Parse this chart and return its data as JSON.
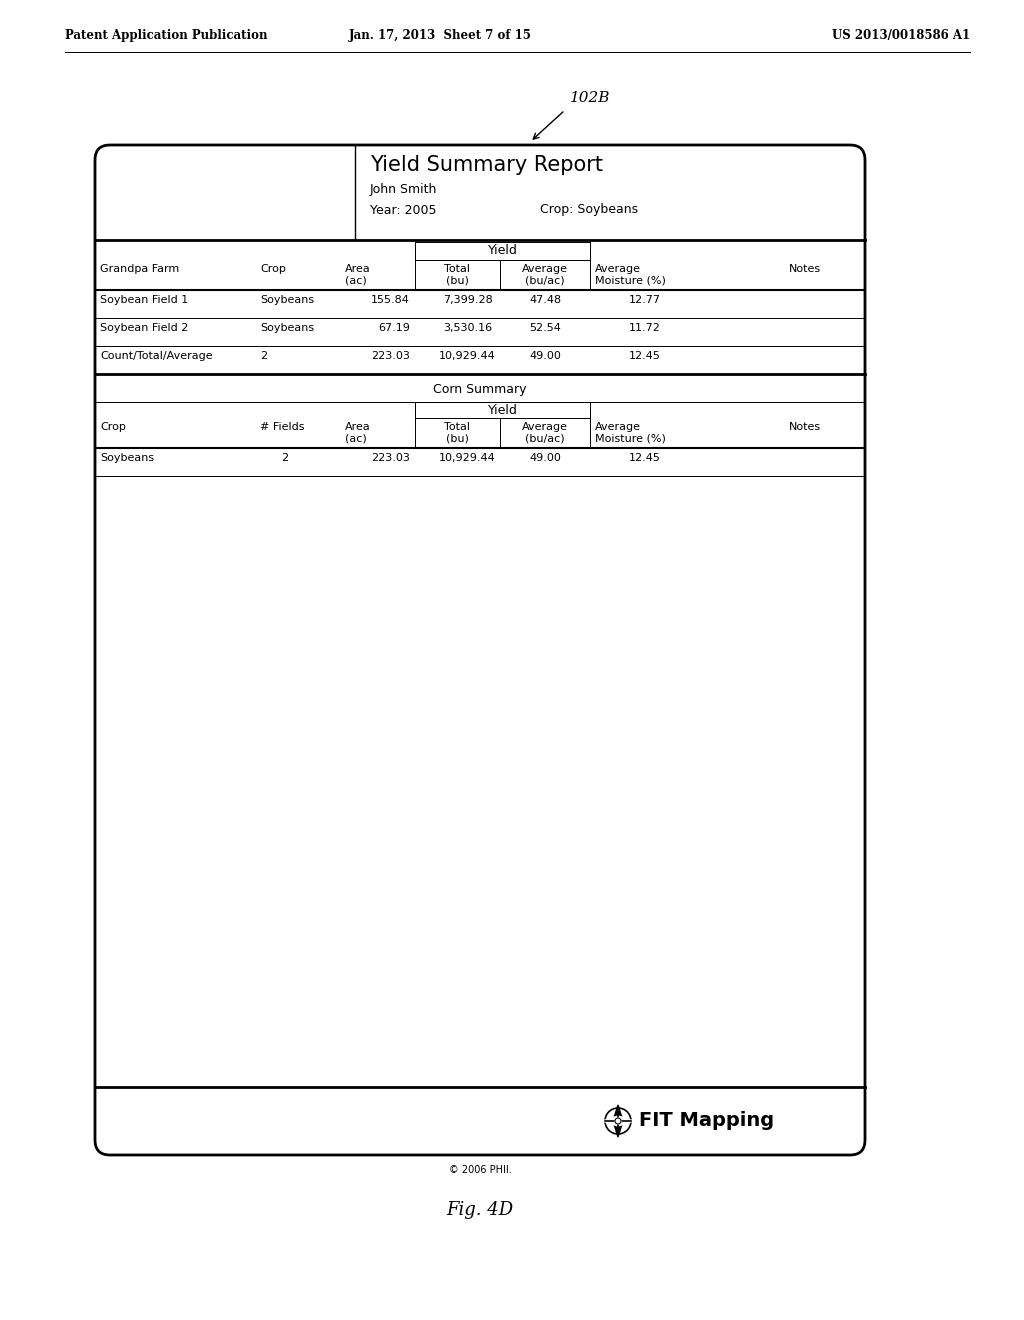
{
  "bg_color": "#ffffff",
  "header_left": "Patent Application Publication",
  "header_center": "Jan. 17, 2013  Sheet 7 of 15",
  "header_right": "US 2013/0018586 A1",
  "label_102B": "102B",
  "report_title": "Yield Summary Report",
  "report_name": "John Smith",
  "report_year": "Year: 2005",
  "report_crop": "Crop: Soybeans",
  "section1_header_col1": "Grandpa Farm",
  "section1_header_col2": "Crop",
  "section1_header_col3": "Area\n(ac)",
  "section1_yield_header": "Yield",
  "section1_yield_total": "Total\n(bu)",
  "section1_yield_avg": "Average\n(bu/ac)",
  "section1_avg_moist": "Average\nMoisture (%)",
  "section1_notes": "Notes",
  "section1_rows": [
    [
      "Soybean Field 1",
      "Soybeans",
      "155.84",
      "7,399.28",
      "47.48",
      "12.77",
      ""
    ],
    [
      "Soybean Field 2",
      "Soybeans",
      "67.19",
      "3,530.16",
      "52.54",
      "11.72",
      ""
    ],
    [
      "Count/Total/Average",
      "2",
      "223.03",
      "10,929.44",
      "49.00",
      "12.45",
      ""
    ]
  ],
  "section2_title": "Corn Summary",
  "section2_header_col1": "Crop",
  "section2_header_col2": "# Fields",
  "section2_header_col3": "Area\n(ac)",
  "section2_yield_header": "Yield",
  "section2_yield_total": "Total\n(bu)",
  "section2_yield_avg": "Average\n(bu/ac)",
  "section2_avg_moist": "Average\nMoisture (%)",
  "section2_notes": "Notes",
  "section2_rows": [
    [
      "Soybeans",
      "2",
      "223.03",
      "10,929.44",
      "49.00",
      "12.45",
      ""
    ]
  ],
  "footer_logo": "FIT Mapping",
  "footer_copyright": "© 2006 PHII.",
  "fig_label": "Fig. 4D"
}
